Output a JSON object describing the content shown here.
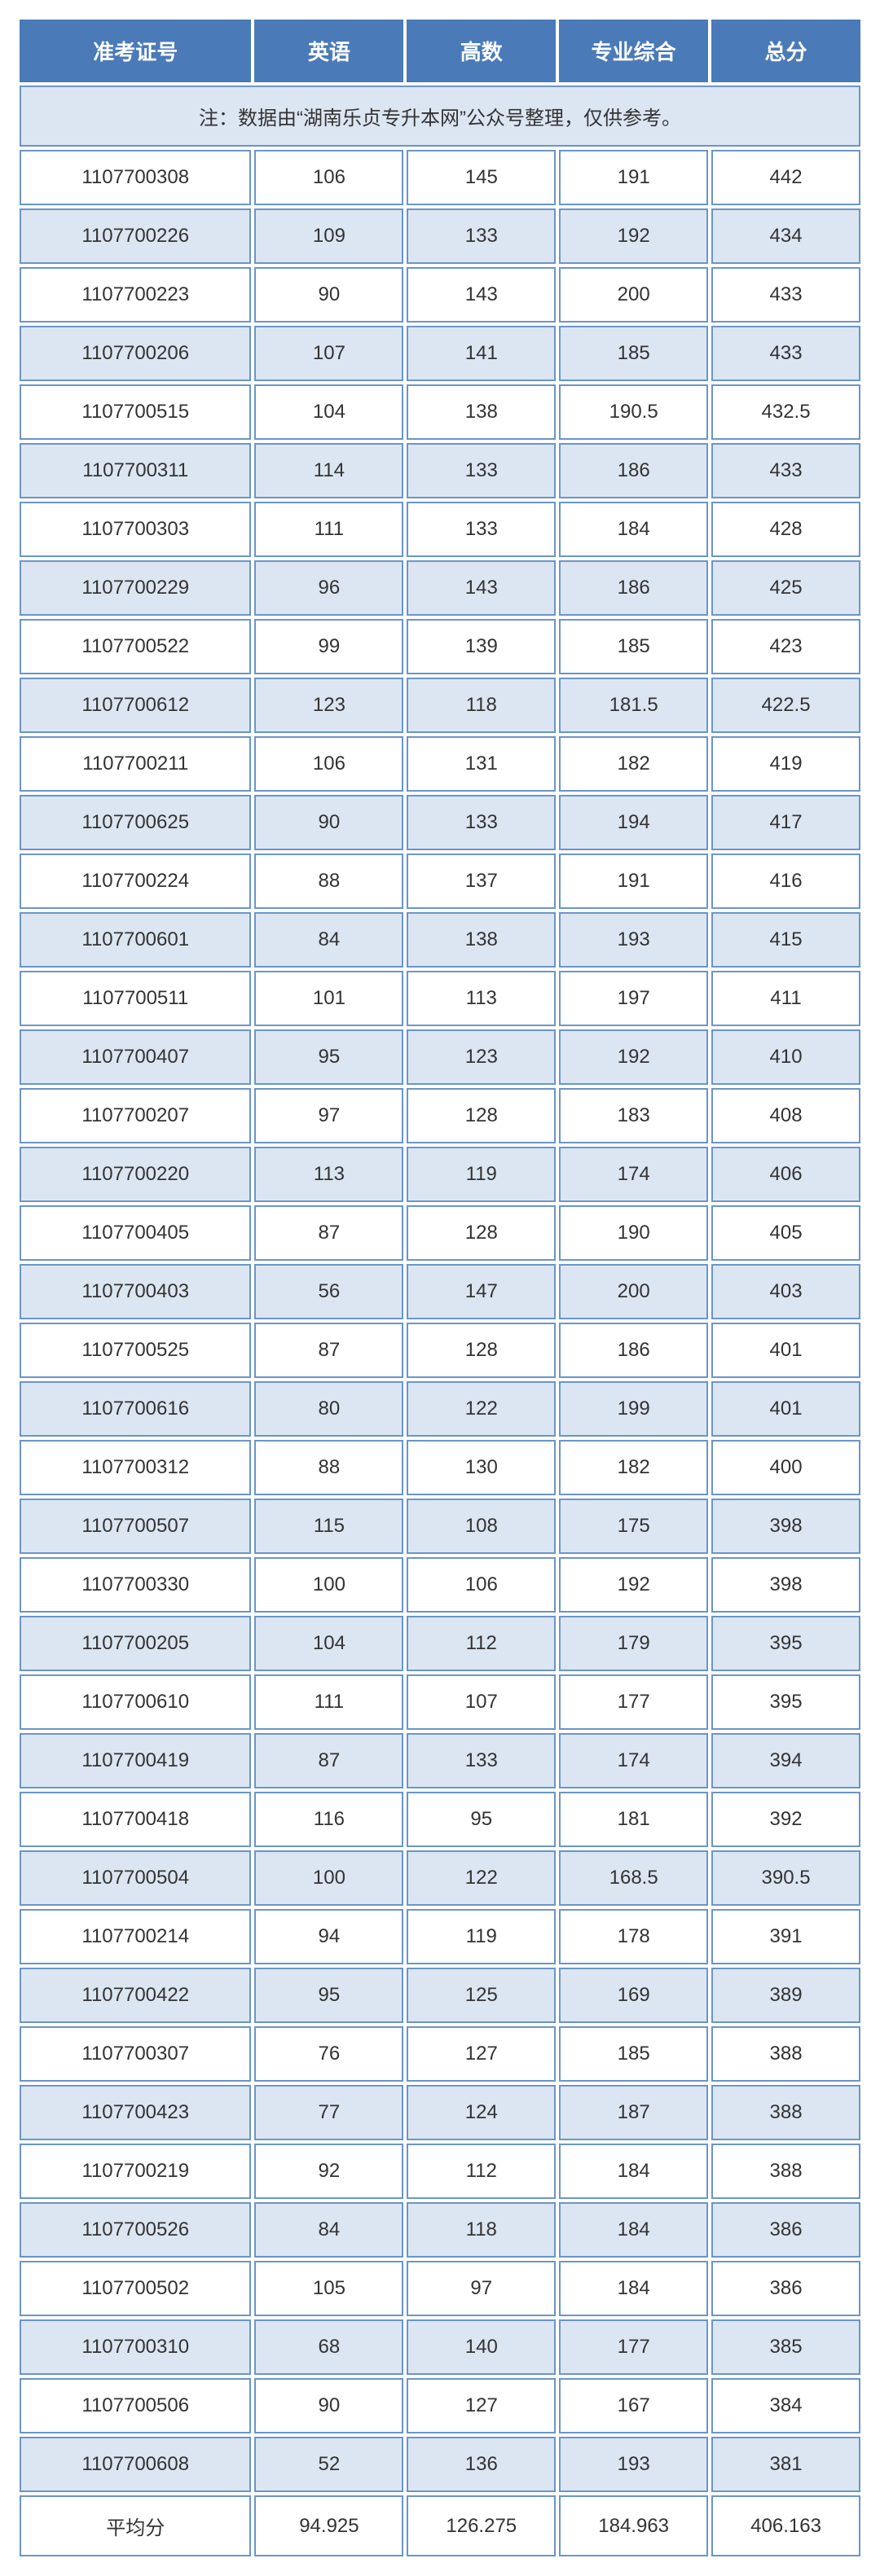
{
  "table": {
    "headers": [
      "准考证号",
      "英语",
      "高数",
      "专业综合",
      "总分"
    ],
    "note": "注：数据由“湖南乐贞专升本网”公众号整理，仅供参考。",
    "rows": [
      [
        "1107700308",
        "106",
        "145",
        "191",
        "442"
      ],
      [
        "1107700226",
        "109",
        "133",
        "192",
        "434"
      ],
      [
        "1107700223",
        "90",
        "143",
        "200",
        "433"
      ],
      [
        "1107700206",
        "107",
        "141",
        "185",
        "433"
      ],
      [
        "1107700515",
        "104",
        "138",
        "190.5",
        "432.5"
      ],
      [
        "1107700311",
        "114",
        "133",
        "186",
        "433"
      ],
      [
        "1107700303",
        "111",
        "133",
        "184",
        "428"
      ],
      [
        "1107700229",
        "96",
        "143",
        "186",
        "425"
      ],
      [
        "1107700522",
        "99",
        "139",
        "185",
        "423"
      ],
      [
        "1107700612",
        "123",
        "118",
        "181.5",
        "422.5"
      ],
      [
        "1107700211",
        "106",
        "131",
        "182",
        "419"
      ],
      [
        "1107700625",
        "90",
        "133",
        "194",
        "417"
      ],
      [
        "1107700224",
        "88",
        "137",
        "191",
        "416"
      ],
      [
        "1107700601",
        "84",
        "138",
        "193",
        "415"
      ],
      [
        "1107700511",
        "101",
        "113",
        "197",
        "411"
      ],
      [
        "1107700407",
        "95",
        "123",
        "192",
        "410"
      ],
      [
        "1107700207",
        "97",
        "128",
        "183",
        "408"
      ],
      [
        "1107700220",
        "113",
        "119",
        "174",
        "406"
      ],
      [
        "1107700405",
        "87",
        "128",
        "190",
        "405"
      ],
      [
        "1107700403",
        "56",
        "147",
        "200",
        "403"
      ],
      [
        "1107700525",
        "87",
        "128",
        "186",
        "401"
      ],
      [
        "1107700616",
        "80",
        "122",
        "199",
        "401"
      ],
      [
        "1107700312",
        "88",
        "130",
        "182",
        "400"
      ],
      [
        "1107700507",
        "115",
        "108",
        "175",
        "398"
      ],
      [
        "1107700330",
        "100",
        "106",
        "192",
        "398"
      ],
      [
        "1107700205",
        "104",
        "112",
        "179",
        "395"
      ],
      [
        "1107700610",
        "111",
        "107",
        "177",
        "395"
      ],
      [
        "1107700419",
        "87",
        "133",
        "174",
        "394"
      ],
      [
        "1107700418",
        "116",
        "95",
        "181",
        "392"
      ],
      [
        "1107700504",
        "100",
        "122",
        "168.5",
        "390.5"
      ],
      [
        "1107700214",
        "94",
        "119",
        "178",
        "391"
      ],
      [
        "1107700422",
        "95",
        "125",
        "169",
        "389"
      ],
      [
        "1107700307",
        "76",
        "127",
        "185",
        "388"
      ],
      [
        "1107700423",
        "77",
        "124",
        "187",
        "388"
      ],
      [
        "1107700219",
        "92",
        "112",
        "184",
        "388"
      ],
      [
        "1107700526",
        "84",
        "118",
        "184",
        "386"
      ],
      [
        "1107700502",
        "105",
        "97",
        "184",
        "386"
      ],
      [
        "1107700310",
        "68",
        "140",
        "177",
        "385"
      ],
      [
        "1107700506",
        "90",
        "127",
        "167",
        "384"
      ],
      [
        "1107700608",
        "52",
        "136",
        "193",
        "381"
      ]
    ],
    "footer": [
      "平均分",
      "94.925",
      "126.275",
      "184.963",
      "406.163"
    ],
    "colors": {
      "header_bg": "#4a7ab8",
      "header_text": "#ffffff",
      "border": "#6b95c8",
      "striped_bg": "#dce6f2",
      "normal_bg": "#ffffff",
      "text": "#333333"
    }
  }
}
